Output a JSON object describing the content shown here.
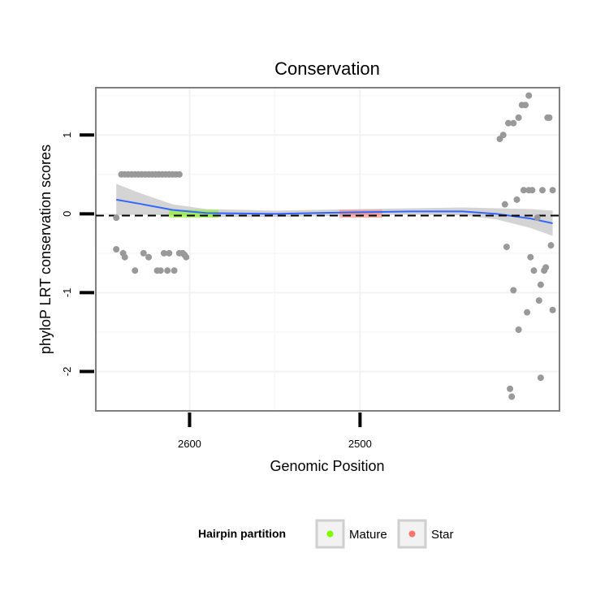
{
  "chart_data": {
    "type": "scatter",
    "title": "Conservation",
    "xlabel": "Genomic Position",
    "ylabel": "phyloP LRT conservation scores",
    "x_reversed": true,
    "xlim": [
      2655,
      2383
    ],
    "ylim": [
      -2.5,
      1.6
    ],
    "x_ticks": [
      2600,
      2500
    ],
    "x_tick_labels": [
      "2600",
      "2500"
    ],
    "y_ticks": [
      1,
      0,
      -1,
      -2
    ],
    "y_tick_labels": [
      "1",
      "0",
      "-1",
      "-2"
    ],
    "grid": true,
    "reference_line": {
      "y": 0,
      "style": "dashed"
    },
    "legend": {
      "title": "Hairpin partition",
      "position": "bottom",
      "entries": [
        {
          "label": "Mature",
          "color": "#7CFC00"
        },
        {
          "label": "Star",
          "color": "#F8766D"
        }
      ]
    },
    "colors": {
      "point": "#999999",
      "smooth": "#3366FF",
      "ribbon": "#cccccc",
      "mature": "#7CFC00",
      "star": "#F8766D"
    },
    "points": [
      {
        "x": 2643,
        "y": -0.05
      },
      {
        "x": 2643,
        "y": -0.45
      },
      {
        "x": 2640,
        "y": 0.5
      },
      {
        "x": 2638,
        "y": 0.5
      },
      {
        "x": 2636,
        "y": 0.5
      },
      {
        "x": 2634,
        "y": 0.5
      },
      {
        "x": 2632,
        "y": 0.5
      },
      {
        "x": 2630,
        "y": 0.5
      },
      {
        "x": 2628,
        "y": 0.5
      },
      {
        "x": 2626,
        "y": 0.5
      },
      {
        "x": 2624,
        "y": 0.5
      },
      {
        "x": 2622,
        "y": 0.5
      },
      {
        "x": 2620,
        "y": 0.5
      },
      {
        "x": 2618,
        "y": 0.5
      },
      {
        "x": 2616,
        "y": 0.5
      },
      {
        "x": 2614,
        "y": 0.5
      },
      {
        "x": 2612,
        "y": 0.5
      },
      {
        "x": 2610,
        "y": 0.5
      },
      {
        "x": 2608,
        "y": 0.5
      },
      {
        "x": 2606,
        "y": 0.5
      },
      {
        "x": 2639,
        "y": -0.5
      },
      {
        "x": 2638,
        "y": -0.55
      },
      {
        "x": 2632,
        "y": -0.72
      },
      {
        "x": 2627,
        "y": -0.5
      },
      {
        "x": 2624,
        "y": -0.55
      },
      {
        "x": 2619,
        "y": -0.72
      },
      {
        "x": 2617,
        "y": -0.72
      },
      {
        "x": 2615,
        "y": -0.5
      },
      {
        "x": 2613,
        "y": -0.72
      },
      {
        "x": 2612,
        "y": -0.5
      },
      {
        "x": 2609,
        "y": -0.72
      },
      {
        "x": 2606,
        "y": -0.5
      },
      {
        "x": 2604,
        "y": -0.5
      },
      {
        "x": 2603,
        "y": -0.52
      },
      {
        "x": 2602,
        "y": -0.55
      },
      {
        "x": 2418,
        "y": 0.95
      },
      {
        "x": 2416,
        "y": 1.0
      },
      {
        "x": 2413,
        "y": 1.15
      },
      {
        "x": 2410,
        "y": 1.15
      },
      {
        "x": 2407,
        "y": 1.22
      },
      {
        "x": 2405,
        "y": 1.38
      },
      {
        "x": 2403,
        "y": 1.38
      },
      {
        "x": 2401,
        "y": 1.5
      },
      {
        "x": 2390,
        "y": 1.22
      },
      {
        "x": 2389,
        "y": 1.22
      },
      {
        "x": 2415,
        "y": 0.12
      },
      {
        "x": 2408,
        "y": 0.18
      },
      {
        "x": 2404,
        "y": 0.3
      },
      {
        "x": 2401,
        "y": 0.3
      },
      {
        "x": 2399,
        "y": 0.3
      },
      {
        "x": 2393,
        "y": 0.3
      },
      {
        "x": 2387,
        "y": 0.3
      },
      {
        "x": 2414,
        "y": -0.42
      },
      {
        "x": 2410,
        "y": -0.97
      },
      {
        "x": 2407,
        "y": -1.47
      },
      {
        "x": 2402,
        "y": -1.25
      },
      {
        "x": 2400,
        "y": -0.55
      },
      {
        "x": 2398,
        "y": -0.72
      },
      {
        "x": 2396,
        "y": -0.05
      },
      {
        "x": 2395,
        "y": -1.1
      },
      {
        "x": 2394,
        "y": -0.9
      },
      {
        "x": 2392,
        "y": -0.72
      },
      {
        "x": 2391,
        "y": -0.68
      },
      {
        "x": 2388,
        "y": -0.4
      },
      {
        "x": 2387,
        "y": -1.22
      },
      {
        "x": 2394,
        "y": -2.08
      },
      {
        "x": 2412,
        "y": -2.22
      },
      {
        "x": 2411,
        "y": -2.32
      }
    ],
    "smooth": [
      {
        "x": 2643,
        "y": 0.18
      },
      {
        "x": 2630,
        "y": 0.13
      },
      {
        "x": 2610,
        "y": 0.05
      },
      {
        "x": 2590,
        "y": 0.01
      },
      {
        "x": 2550,
        "y": 0.0
      },
      {
        "x": 2500,
        "y": 0.02
      },
      {
        "x": 2470,
        "y": 0.03
      },
      {
        "x": 2440,
        "y": 0.03
      },
      {
        "x": 2420,
        "y": 0.0
      },
      {
        "x": 2400,
        "y": -0.06
      },
      {
        "x": 2387,
        "y": -0.12
      }
    ],
    "ribbon_halfwidth": [
      {
        "x": 2643,
        "y": 0.2
      },
      {
        "x": 2630,
        "y": 0.14
      },
      {
        "x": 2610,
        "y": 0.07
      },
      {
        "x": 2590,
        "y": 0.05
      },
      {
        "x": 2550,
        "y": 0.04
      },
      {
        "x": 2500,
        "y": 0.04
      },
      {
        "x": 2470,
        "y": 0.04
      },
      {
        "x": 2440,
        "y": 0.05
      },
      {
        "x": 2420,
        "y": 0.07
      },
      {
        "x": 2400,
        "y": 0.12
      },
      {
        "x": 2387,
        "y": 0.16
      }
    ],
    "mature_range": [
      2612,
      2583
    ],
    "star_range": [
      2512,
      2487
    ]
  }
}
